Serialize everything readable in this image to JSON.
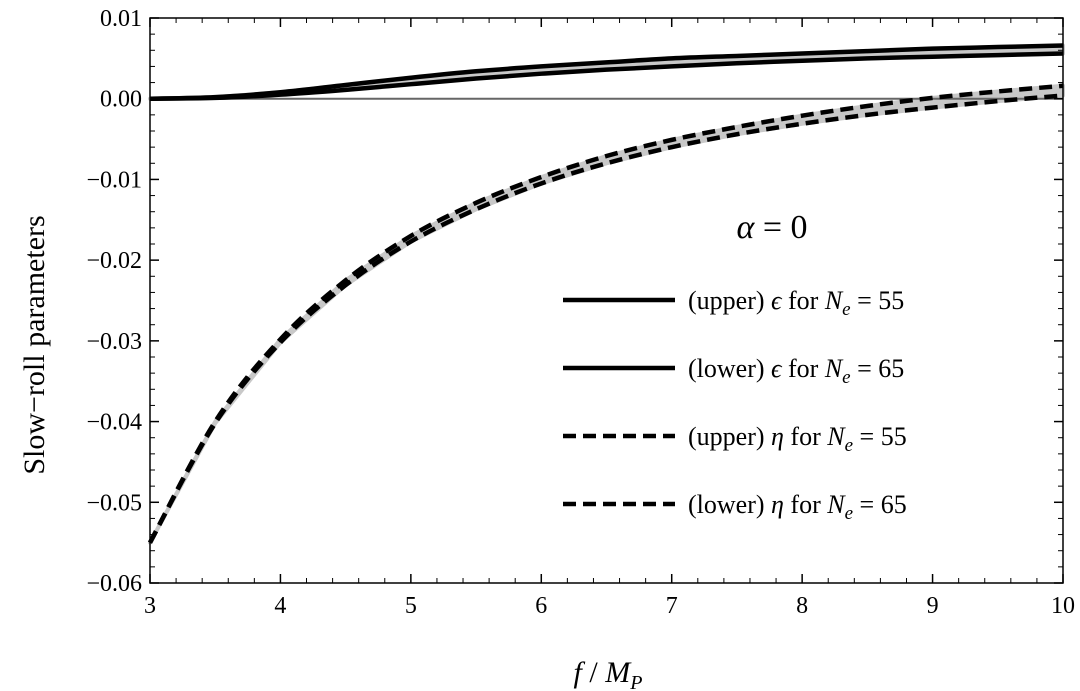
{
  "chart_data": {
    "type": "line",
    "xlabel": {
      "var": "f",
      "sep": " / ",
      "unit": "M",
      "unit_sub": "P"
    },
    "ylabel": "Slow−roll  parameters",
    "xlim": [
      3,
      10
    ],
    "ylim": [
      -0.06,
      0.01
    ],
    "x_ticks": [
      3,
      4,
      5,
      6,
      7,
      8,
      9,
      10
    ],
    "x_tick_labels": [
      "3",
      "4",
      "5",
      "6",
      "7",
      "8",
      "9",
      "10"
    ],
    "y_ticks": [
      0.01,
      0.0,
      -0.01,
      -0.02,
      -0.03,
      -0.04,
      -0.05,
      -0.06
    ],
    "y_tick_labels": [
      "0.01",
      "0.00",
      "−0.01",
      "−0.02",
      "−0.03",
      "−0.04",
      "−0.05",
      "−0.06"
    ],
    "grid": false,
    "annotation": {
      "lhs": "α",
      "rhs": " = 0"
    },
    "legend_position": "center-right",
    "zero_line": true,
    "band_color": "#c8c8c8",
    "line_color": "#000000",
    "zero_line_color": "#666666",
    "series": [
      {
        "name": "(upper) ϵ for N_e = 55",
        "legend_parts": {
          "prefix": "(upper) ",
          "sym": "ϵ",
          "mid": " for ",
          "N": "N",
          "sub": "e",
          "suffix": " = 55"
        },
        "style": "solid",
        "x": [
          3.0,
          3.5,
          4.0,
          4.5,
          5.0,
          5.5,
          6.0,
          6.5,
          7.0,
          7.5,
          8.0,
          8.5,
          9.0,
          9.5,
          10.0
        ],
        "y": [
          0.0,
          0.0002,
          0.0008,
          0.0017,
          0.0026,
          0.0034,
          0.004,
          0.0045,
          0.005,
          0.0053,
          0.0056,
          0.0059,
          0.0062,
          0.0064,
          0.0066
        ]
      },
      {
        "name": "(lower) ϵ for N_e = 65",
        "legend_parts": {
          "prefix": "(lower) ",
          "sym": "ϵ",
          "mid": " for ",
          "N": "N",
          "sub": "e",
          "suffix": " = 65"
        },
        "style": "solid",
        "x": [
          3.0,
          3.5,
          4.0,
          4.5,
          5.0,
          5.5,
          6.0,
          6.5,
          7.0,
          7.5,
          8.0,
          8.5,
          9.0,
          9.5,
          10.0
        ],
        "y": [
          0.0,
          0.0001,
          0.0005,
          0.0011,
          0.0018,
          0.0025,
          0.0031,
          0.0036,
          0.004,
          0.0044,
          0.0047,
          0.005,
          0.0052,
          0.0054,
          0.0056
        ]
      },
      {
        "name": "(upper) η for N_e = 55",
        "legend_parts": {
          "prefix": "(upper) ",
          "sym": "η",
          "mid": " for ",
          "N": "N",
          "sub": "e",
          "suffix": " = 55"
        },
        "style": "dashed",
        "x": [
          3.0,
          3.5,
          4.0,
          4.5,
          5.0,
          5.5,
          6.0,
          6.5,
          7.0,
          7.5,
          8.0,
          8.5,
          9.0,
          9.5,
          10.0
        ],
        "y": [
          -0.055,
          -0.04,
          -0.0298,
          -0.0225,
          -0.017,
          -0.0129,
          -0.0097,
          -0.0071,
          -0.0051,
          -0.0035,
          -0.0021,
          -0.0009,
          0.0001,
          0.0009,
          0.0016
        ]
      },
      {
        "name": "(lower) η for N_e = 65",
        "legend_parts": {
          "prefix": "(lower) ",
          "sym": "η",
          "mid": " for ",
          "N": "N",
          "sub": "e",
          "suffix": " = 65"
        },
        "style": "dashed",
        "x": [
          3.0,
          3.5,
          4.0,
          4.5,
          5.0,
          5.5,
          6.0,
          6.5,
          7.0,
          7.5,
          8.0,
          8.5,
          9.0,
          9.5,
          10.0
        ],
        "y": [
          -0.055,
          -0.0402,
          -0.0302,
          -0.0231,
          -0.0177,
          -0.0137,
          -0.0105,
          -0.008,
          -0.006,
          -0.0044,
          -0.0031,
          -0.002,
          -0.0011,
          -0.0003,
          0.0004
        ]
      }
    ]
  }
}
